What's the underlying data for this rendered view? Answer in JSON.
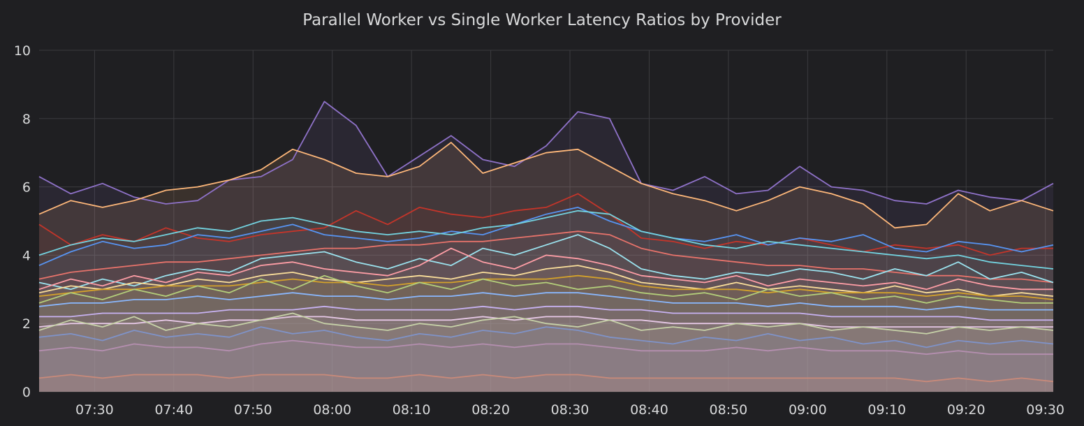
{
  "panel": {
    "title": "Parallel Worker vs Single Worker Latency Ratios by Provider"
  },
  "colors": {
    "background": "#1f1f22",
    "grid": "#3b3b3f",
    "text": "#d8d9da"
  },
  "chart_data": {
    "type": "area",
    "title": "Parallel Worker vs Single Worker Latency Ratios by Provider",
    "xlabel": "",
    "ylabel": "",
    "ylim": [
      0,
      10
    ],
    "xlim": [
      "07:23",
      "09:31"
    ],
    "grid": true,
    "legend": "none",
    "x_ticks": [
      "07:30",
      "07:40",
      "07:50",
      "08:00",
      "08:10",
      "08:20",
      "08:30",
      "08:40",
      "08:50",
      "09:00",
      "09:10",
      "09:20",
      "09:30"
    ],
    "y_ticks": [
      0,
      2,
      4,
      6,
      8,
      10
    ],
    "x": [
      "07:23",
      "07:27",
      "07:31",
      "07:35",
      "07:39",
      "07:43",
      "07:47",
      "07:51",
      "07:55",
      "07:59",
      "08:03",
      "08:07",
      "08:11",
      "08:15",
      "08:19",
      "08:23",
      "08:27",
      "08:31",
      "08:35",
      "08:39",
      "08:43",
      "08:47",
      "08:51",
      "08:55",
      "08:59",
      "09:03",
      "09:07",
      "09:11",
      "09:15",
      "09:19",
      "09:23",
      "09:27",
      "09:31"
    ],
    "series": [
      {
        "color": "#8f72c9",
        "values": [
          6.3,
          5.8,
          6.1,
          5.7,
          5.5,
          5.6,
          6.2,
          6.3,
          6.8,
          8.5,
          7.8,
          6.3,
          6.9,
          7.5,
          6.8,
          6.6,
          7.2,
          8.2,
          8.0,
          6.1,
          5.9,
          6.3,
          5.8,
          5.9,
          6.6,
          6.0,
          5.9,
          5.6,
          5.5,
          5.9,
          5.7,
          5.6,
          6.1
        ],
        "fill": 0.1
      },
      {
        "color": "#ffb87a",
        "values": [
          5.2,
          5.6,
          5.4,
          5.6,
          5.9,
          6.0,
          6.2,
          6.5,
          7.1,
          6.8,
          6.4,
          6.3,
          6.6,
          7.3,
          6.4,
          6.7,
          7.0,
          7.1,
          6.6,
          6.1,
          5.8,
          5.6,
          5.3,
          5.6,
          6.0,
          5.8,
          5.5,
          4.8,
          4.9,
          5.8,
          5.3,
          5.6,
          5.3
        ],
        "fill": 0.12
      },
      {
        "color": "#c4352a",
        "values": [
          4.9,
          4.3,
          4.6,
          4.4,
          4.8,
          4.5,
          4.4,
          4.6,
          4.7,
          4.8,
          5.3,
          4.9,
          5.4,
          5.2,
          5.1,
          5.3,
          5.4,
          5.8,
          5.2,
          4.5,
          4.4,
          4.2,
          4.4,
          4.3,
          4.5,
          4.3,
          4.1,
          4.3,
          4.2,
          4.3,
          4.0,
          4.2,
          4.2
        ],
        "fill": 0.06
      },
      {
        "color": "#5794f2",
        "values": [
          3.7,
          4.1,
          4.4,
          4.2,
          4.3,
          4.6,
          4.5,
          4.7,
          4.9,
          4.6,
          4.5,
          4.4,
          4.5,
          4.7,
          4.6,
          4.9,
          5.2,
          5.4,
          5.0,
          4.7,
          4.5,
          4.4,
          4.6,
          4.3,
          4.5,
          4.4,
          4.6,
          4.2,
          4.1,
          4.4,
          4.3,
          4.1,
          4.3
        ],
        "fill": 0.06
      },
      {
        "color": "#73d3e0",
        "values": [
          4.0,
          4.3,
          4.5,
          4.4,
          4.6,
          4.8,
          4.7,
          5.0,
          5.1,
          4.9,
          4.7,
          4.6,
          4.7,
          4.6,
          4.8,
          4.9,
          5.1,
          5.3,
          5.2,
          4.7,
          4.5,
          4.3,
          4.2,
          4.4,
          4.3,
          4.2,
          4.1,
          4.0,
          3.9,
          4.0,
          3.8,
          3.7,
          3.6
        ],
        "fill": 0.05
      },
      {
        "color": "#e8736b",
        "values": [
          3.3,
          3.5,
          3.6,
          3.7,
          3.8,
          3.8,
          3.9,
          4.0,
          4.1,
          4.2,
          4.2,
          4.3,
          4.3,
          4.4,
          4.4,
          4.5,
          4.6,
          4.7,
          4.6,
          4.2,
          4.0,
          3.9,
          3.8,
          3.7,
          3.7,
          3.6,
          3.6,
          3.5,
          3.4,
          3.4,
          3.3,
          3.3,
          3.2
        ],
        "fill": 0.05
      },
      {
        "color": "#9be3ef",
        "values": [
          3.2,
          3.0,
          3.3,
          3.1,
          3.4,
          3.6,
          3.5,
          3.9,
          4.0,
          4.1,
          3.8,
          3.6,
          3.9,
          3.7,
          4.2,
          4.0,
          4.3,
          4.6,
          4.2,
          3.6,
          3.4,
          3.3,
          3.5,
          3.4,
          3.6,
          3.5,
          3.3,
          3.6,
          3.4,
          3.8,
          3.3,
          3.5,
          3.2
        ],
        "fill": 0.05
      },
      {
        "color": "#ff9ea6",
        "values": [
          3.0,
          3.3,
          3.1,
          3.4,
          3.2,
          3.5,
          3.4,
          3.7,
          3.8,
          3.6,
          3.5,
          3.4,
          3.7,
          4.2,
          3.8,
          3.6,
          4.0,
          3.9,
          3.7,
          3.4,
          3.3,
          3.2,
          3.4,
          3.1,
          3.3,
          3.2,
          3.1,
          3.2,
          3.0,
          3.3,
          3.1,
          3.0,
          3.0
        ],
        "fill": 0.06
      },
      {
        "color": "#fade9a",
        "values": [
          2.9,
          3.1,
          3.0,
          3.2,
          3.1,
          3.3,
          3.2,
          3.4,
          3.5,
          3.3,
          3.2,
          3.3,
          3.4,
          3.3,
          3.5,
          3.4,
          3.6,
          3.7,
          3.5,
          3.2,
          3.1,
          3.0,
          3.2,
          3.0,
          3.1,
          3.0,
          2.9,
          3.1,
          2.9,
          3.0,
          2.8,
          2.9,
          2.8
        ],
        "fill": 0.06
      },
      {
        "color": "#d4a22a",
        "values": [
          2.8,
          2.9,
          3.0,
          3.0,
          3.1,
          3.1,
          3.1,
          3.2,
          3.3,
          3.2,
          3.2,
          3.1,
          3.2,
          3.2,
          3.3,
          3.3,
          3.3,
          3.4,
          3.3,
          3.1,
          3.0,
          3.0,
          3.0,
          2.9,
          3.0,
          2.9,
          2.9,
          2.9,
          2.8,
          2.9,
          2.8,
          2.8,
          2.7
        ],
        "fill": 0.05
      },
      {
        "color": "#b4cf7a",
        "values": [
          2.6,
          2.9,
          2.7,
          3.0,
          2.8,
          3.1,
          2.9,
          3.3,
          3.0,
          3.4,
          3.1,
          2.9,
          3.2,
          3.0,
          3.3,
          3.1,
          3.2,
          3.0,
          3.1,
          2.9,
          2.8,
          2.9,
          2.7,
          3.0,
          2.8,
          2.9,
          2.7,
          2.8,
          2.6,
          2.8,
          2.7,
          2.6,
          2.6
        ],
        "fill": 0.05
      },
      {
        "color": "#8ab8ff",
        "values": [
          2.5,
          2.6,
          2.6,
          2.7,
          2.7,
          2.8,
          2.7,
          2.8,
          2.9,
          2.8,
          2.8,
          2.7,
          2.8,
          2.8,
          2.9,
          2.8,
          2.9,
          2.9,
          2.8,
          2.7,
          2.6,
          2.6,
          2.6,
          2.5,
          2.6,
          2.5,
          2.5,
          2.5,
          2.4,
          2.5,
          2.4,
          2.4,
          2.4
        ],
        "fill": 0.06
      },
      {
        "color": "#c8b2f2",
        "values": [
          2.2,
          2.2,
          2.3,
          2.3,
          2.3,
          2.3,
          2.4,
          2.4,
          2.4,
          2.5,
          2.4,
          2.4,
          2.4,
          2.4,
          2.5,
          2.4,
          2.5,
          2.5,
          2.4,
          2.4,
          2.3,
          2.3,
          2.3,
          2.3,
          2.3,
          2.2,
          2.2,
          2.2,
          2.2,
          2.2,
          2.1,
          2.1,
          2.1
        ],
        "fill": 0.06
      },
      {
        "color": "#e6c8e6",
        "values": [
          1.9,
          2.0,
          2.0,
          2.0,
          2.1,
          2.0,
          2.1,
          2.1,
          2.2,
          2.2,
          2.1,
          2.1,
          2.1,
          2.1,
          2.2,
          2.1,
          2.2,
          2.2,
          2.1,
          2.1,
          2.0,
          2.0,
          2.0,
          2.0,
          2.0,
          1.9,
          1.9,
          1.9,
          1.9,
          1.9,
          1.9,
          1.9,
          1.9
        ],
        "fill": 0.08
      },
      {
        "color": "#c7d2a8",
        "values": [
          1.8,
          2.1,
          1.9,
          2.2,
          1.8,
          2.0,
          1.9,
          2.1,
          2.3,
          2.0,
          1.9,
          1.8,
          2.0,
          1.9,
          2.1,
          2.2,
          2.0,
          1.9,
          2.1,
          1.8,
          1.9,
          1.8,
          2.0,
          1.9,
          2.0,
          1.8,
          1.9,
          1.8,
          1.7,
          1.9,
          1.8,
          1.9,
          1.8
        ],
        "fill": 0.08
      },
      {
        "color": "#7f93c9",
        "values": [
          1.6,
          1.7,
          1.5,
          1.8,
          1.6,
          1.7,
          1.6,
          1.9,
          1.7,
          1.8,
          1.6,
          1.5,
          1.7,
          1.6,
          1.8,
          1.7,
          1.9,
          1.8,
          1.6,
          1.5,
          1.4,
          1.6,
          1.5,
          1.7,
          1.5,
          1.6,
          1.4,
          1.5,
          1.3,
          1.5,
          1.4,
          1.5,
          1.4
        ],
        "fill": 0.1
      },
      {
        "color": "#b58fb0",
        "values": [
          1.2,
          1.3,
          1.2,
          1.4,
          1.3,
          1.3,
          1.2,
          1.4,
          1.5,
          1.4,
          1.3,
          1.3,
          1.4,
          1.3,
          1.4,
          1.3,
          1.4,
          1.4,
          1.3,
          1.2,
          1.2,
          1.2,
          1.3,
          1.2,
          1.3,
          1.2,
          1.2,
          1.2,
          1.1,
          1.2,
          1.1,
          1.1,
          1.1
        ],
        "fill": 0.12
      },
      {
        "color": "#c98a7a",
        "values": [
          0.4,
          0.5,
          0.4,
          0.5,
          0.5,
          0.5,
          0.4,
          0.5,
          0.5,
          0.5,
          0.4,
          0.4,
          0.5,
          0.4,
          0.5,
          0.4,
          0.5,
          0.5,
          0.4,
          0.4,
          0.4,
          0.4,
          0.4,
          0.4,
          0.4,
          0.4,
          0.4,
          0.4,
          0.3,
          0.4,
          0.3,
          0.4,
          0.3
        ],
        "fill": 0.15
      }
    ]
  }
}
